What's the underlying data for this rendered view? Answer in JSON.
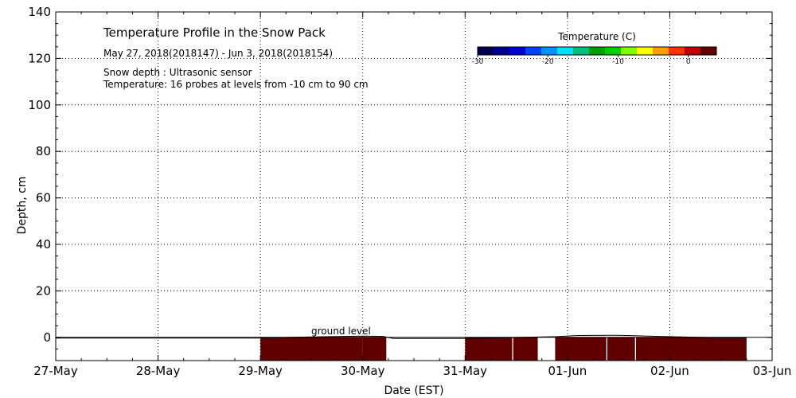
{
  "chart_data": {
    "type": "area",
    "title": "Temperature Profile in the Snow Pack",
    "subtitle": "May 27, 2018(2018147) - Jun  3, 2018(2018154)",
    "notes": [
      "Snow depth : Ultrasonic sensor",
      "Temperature: 16 probes at levels from -10 cm to 90 cm"
    ],
    "xlabel": "Date (EST)",
    "ylabel": "Depth, cm",
    "x_ticks": [
      "27-May",
      "28-May",
      "29-May",
      "30-May",
      "31-May",
      "01-Jun",
      "02-Jun",
      "03-Jun"
    ],
    "xlim_days": [
      0,
      7
    ],
    "ylim": [
      -10,
      140
    ],
    "y_ticks": [
      0,
      20,
      40,
      60,
      80,
      100,
      120,
      140
    ],
    "grid": true,
    "annotation": "ground level",
    "colorbar": {
      "label": "Temperature (C)",
      "ticks": [
        -30,
        -20,
        -10,
        0
      ],
      "range": [
        -30,
        4
      ],
      "colors": [
        "#000050",
        "#000090",
        "#0000d0",
        "#0040ff",
        "#0090ff",
        "#00e0ff",
        "#00c080",
        "#00a000",
        "#00d000",
        "#80ff00",
        "#ffff00",
        "#ffa000",
        "#ff3000",
        "#c00000",
        "#600000"
      ]
    },
    "temperature_blocks": [
      {
        "start": 2.0,
        "end": 3.0,
        "color": "#600000"
      },
      {
        "start": 3.0,
        "end": 3.23,
        "color": "#600000"
      },
      {
        "start": 4.0,
        "end": 4.46,
        "color": "#600000"
      },
      {
        "start": 4.47,
        "end": 4.71,
        "color": "#600000"
      },
      {
        "start": 4.88,
        "end": 5.38,
        "color": "#600000"
      },
      {
        "start": 5.39,
        "end": 5.66,
        "color": "#600000"
      },
      {
        "start": 5.67,
        "end": 6.75,
        "color": "#600000"
      }
    ],
    "snow_depth": [
      {
        "x": 0.0,
        "y": -0.3
      },
      {
        "x": 1.0,
        "y": -0.3
      },
      {
        "x": 2.0,
        "y": -0.3
      },
      {
        "x": 2.5,
        "y": 0.2
      },
      {
        "x": 3.0,
        "y": 0.5
      },
      {
        "x": 3.2,
        "y": 0.4
      },
      {
        "x": 3.3,
        "y": -0.5
      },
      {
        "x": 4.0,
        "y": -0.5
      },
      {
        "x": 4.9,
        "y": 0.3
      },
      {
        "x": 5.1,
        "y": 0.8
      },
      {
        "x": 5.5,
        "y": 0.9
      },
      {
        "x": 5.9,
        "y": 0.4
      },
      {
        "x": 6.5,
        "y": -0.2
      },
      {
        "x": 6.75,
        "y": -0.2
      }
    ]
  }
}
